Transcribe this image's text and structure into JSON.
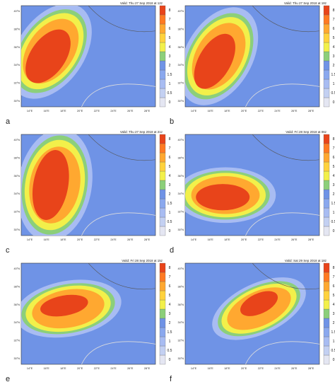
{
  "panels": [
    {
      "label": "a",
      "valid": "Valid: Thu 27 Sep 2018 at 12z"
    },
    {
      "label": "b",
      "valid": "Valid: Thu 27 Sep 2018 at 18z"
    },
    {
      "label": "c",
      "valid": "Valid: Thu 27 Sep 2018 at 21z"
    },
    {
      "label": "d",
      "valid": "Valid: Fri 28 Sep 2018 at 06z"
    },
    {
      "label": "e",
      "valid": "Valid: Fri 28 Sep 2018 at 15z"
    },
    {
      "label": "f",
      "valid": "Valid: Sat 29 Sep 2018 at 18z"
    }
  ],
  "colorbar_labels": [
    "0",
    "0.5",
    "1",
    "1.5",
    "2",
    "3",
    "4",
    "5",
    "6",
    "7",
    "8"
  ],
  "longitude_labels": [
    "14°E",
    "16°E",
    "18°E",
    "20°E",
    "22°E",
    "24°E",
    "26°E",
    "28°E"
  ],
  "latitude_labels": [
    "40°N",
    "38°N",
    "36°N",
    "34°N",
    "32°N",
    "30°N"
  ]
}
